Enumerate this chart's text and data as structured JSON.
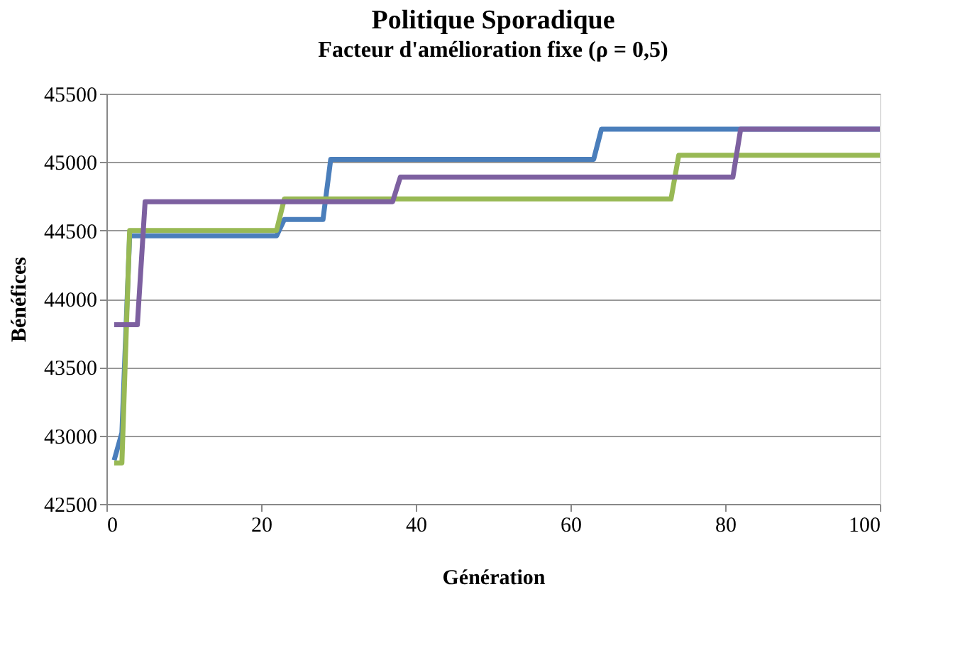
{
  "chart_data": {
    "type": "line",
    "title": "Politique Sporadique",
    "subtitle": "Facteur d'amélioration fixe (ρ = 0,5)",
    "xlabel": "Génération",
    "ylabel": "Bénéfices",
    "xlim": [
      0,
      100
    ],
    "xticks": [
      0,
      20,
      40,
      60,
      80,
      100
    ],
    "ylim": [
      42500,
      45500
    ],
    "yticks": [
      42500,
      43000,
      43500,
      44000,
      44500,
      45000,
      45500
    ],
    "grid": "y",
    "legend": false,
    "marker": "none",
    "line_style": "solid",
    "series": [
      {
        "color": "#4a7ebb",
        "x": [
          1,
          2,
          3,
          22,
          23,
          28,
          29,
          63,
          64,
          100
        ],
        "values": [
          42820,
          43020,
          44460,
          44460,
          44580,
          44580,
          45020,
          45020,
          45240,
          45240
        ]
      },
      {
        "color": "#98b954",
        "x": [
          1,
          2,
          3,
          22,
          23,
          73,
          74,
          100
        ],
        "values": [
          42800,
          42800,
          44500,
          44500,
          44730,
          44730,
          45050,
          45050
        ]
      },
      {
        "color": "#7d60a0",
        "x": [
          1,
          4,
          5,
          37,
          38,
          81,
          82,
          100
        ],
        "values": [
          43810,
          43810,
          44710,
          44710,
          44890,
          44890,
          45240,
          45240
        ]
      }
    ]
  }
}
